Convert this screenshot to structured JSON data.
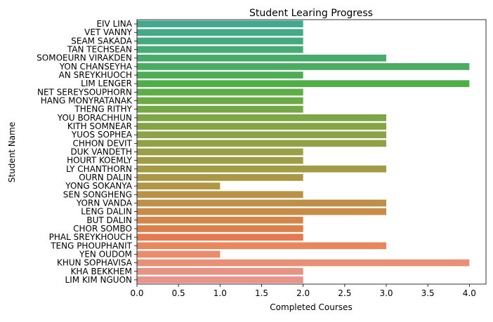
{
  "chart_data": {
    "type": "bar",
    "orientation": "horizontal",
    "title": "Student Learing Progress",
    "xlabel": "Completed Courses",
    "ylabel": "Student Name",
    "xlim": [
      0,
      4.2
    ],
    "xticks": [
      0.0,
      0.5,
      1.0,
      1.5,
      2.0,
      2.5,
      3.0,
      3.5,
      4.0
    ],
    "xtick_labels": [
      "0.0",
      "0.5",
      "1.0",
      "1.5",
      "2.0",
      "2.5",
      "3.0",
      "3.5",
      "4.0"
    ],
    "grid": false,
    "categories": [
      "EIV LINA",
      "VET VANNY",
      "SEAM SAKADA",
      "TAN TECHSEAN",
      "SOMOEURN VIRAKDEN",
      "YON CHANSEYHA",
      "AN SREYKHUOCH",
      "LIM LENGER",
      "NET SEREYSOUPHORN",
      "HANG MONYRATANAK",
      "THENG RITHY",
      "YOU BORACHHUN",
      "KITH SOMNEAR",
      "YUOS SOPHEA",
      "CHHON DEVIT",
      "DUK VANDETH",
      "HOURT KOEMLY",
      "LY CHANTHORN",
      "OURN DALIN",
      "YONG SOKANYA",
      "SEN SONGHENG",
      "YORN VANDA",
      "LENG DALIN",
      "BUT DALIN",
      "CHOR SOMBO",
      "PHAL SREYKHOUCH",
      "TENG PHOUPHANIT",
      "YEN OUDOM",
      "KHUN SOPHAVISA",
      "KHA BEKKHEM",
      "LIM KIM NGUON"
    ],
    "values": [
      2,
      2,
      2,
      2,
      3,
      4,
      2,
      4,
      2,
      2,
      2,
      3,
      3,
      3,
      3,
      2,
      2,
      3,
      2,
      1,
      2,
      3,
      3,
      2,
      2,
      2,
      3,
      1,
      4,
      2,
      2
    ],
    "colors": [
      "#44a98c",
      "#44aa85",
      "#45aa7d",
      "#46ab74",
      "#48ab6b",
      "#4aac61",
      "#4cad55",
      "#4eae48",
      "#5ead48",
      "#6aaa47",
      "#74a847",
      "#7da647",
      "#85a446",
      "#8ca246",
      "#92a046",
      "#989f46",
      "#9e9d46",
      "#a49b46",
      "#aa9845",
      "#b19646",
      "#b89346",
      "#c08f47",
      "#c98b48",
      "#d28649",
      "#dc804b",
      "#e67950",
      "#e8865d",
      "#e88c6c",
      "#e88f78",
      "#e89283",
      "#e8948d"
    ]
  }
}
